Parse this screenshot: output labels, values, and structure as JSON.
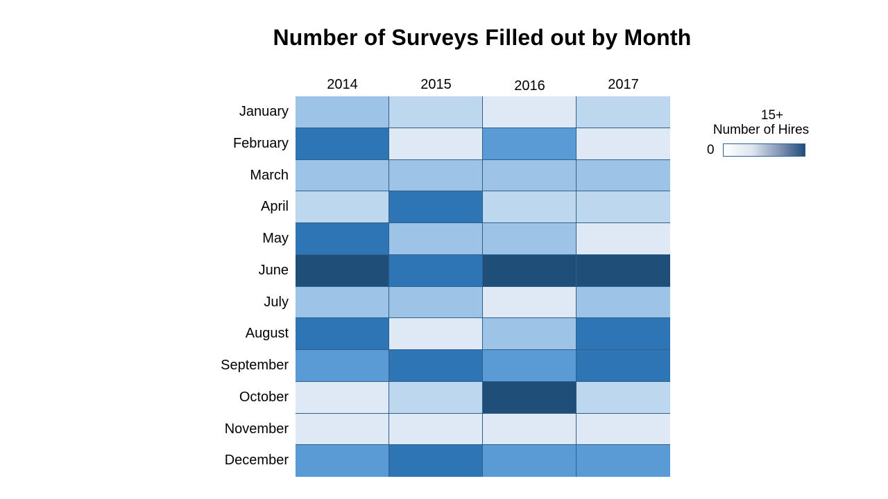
{
  "chart_data": {
    "type": "heatmap",
    "title": "Number of Surveys Filled out by Month",
    "x_categories": [
      "2014",
      "2015",
      "2016",
      "2017"
    ],
    "y_categories": [
      "January",
      "February",
      "March",
      "April",
      "May",
      "June",
      "July",
      "August",
      "September",
      "October",
      "November",
      "December"
    ],
    "values": [
      [
        6,
        4,
        2,
        4
      ],
      [
        12,
        2,
        10,
        2
      ],
      [
        6,
        6,
        6,
        6
      ],
      [
        4,
        12,
        4,
        4
      ],
      [
        12,
        6,
        6,
        2
      ],
      [
        15,
        12,
        15,
        15
      ],
      [
        6,
        6,
        2,
        6
      ],
      [
        12,
        2,
        6,
        12
      ],
      [
        10,
        12,
        10,
        12
      ],
      [
        2,
        4,
        15,
        4
      ],
      [
        2,
        2,
        2,
        2
      ],
      [
        10,
        12,
        10,
        10
      ]
    ],
    "color_scale": {
      "min_label": "0",
      "max_label": "15+",
      "title": "Number of Hires",
      "stops": [
        {
          "value": 2,
          "color": "#dfe9f5"
        },
        {
          "value": 4,
          "color": "#bdd7ee"
        },
        {
          "value": 6,
          "color": "#9dc3e6"
        },
        {
          "value": 10,
          "color": "#5b9bd5"
        },
        {
          "value": 12,
          "color": "#2e75b6"
        },
        {
          "value": 15,
          "color": "#1f4e79"
        }
      ]
    },
    "legend_placement": "right"
  }
}
